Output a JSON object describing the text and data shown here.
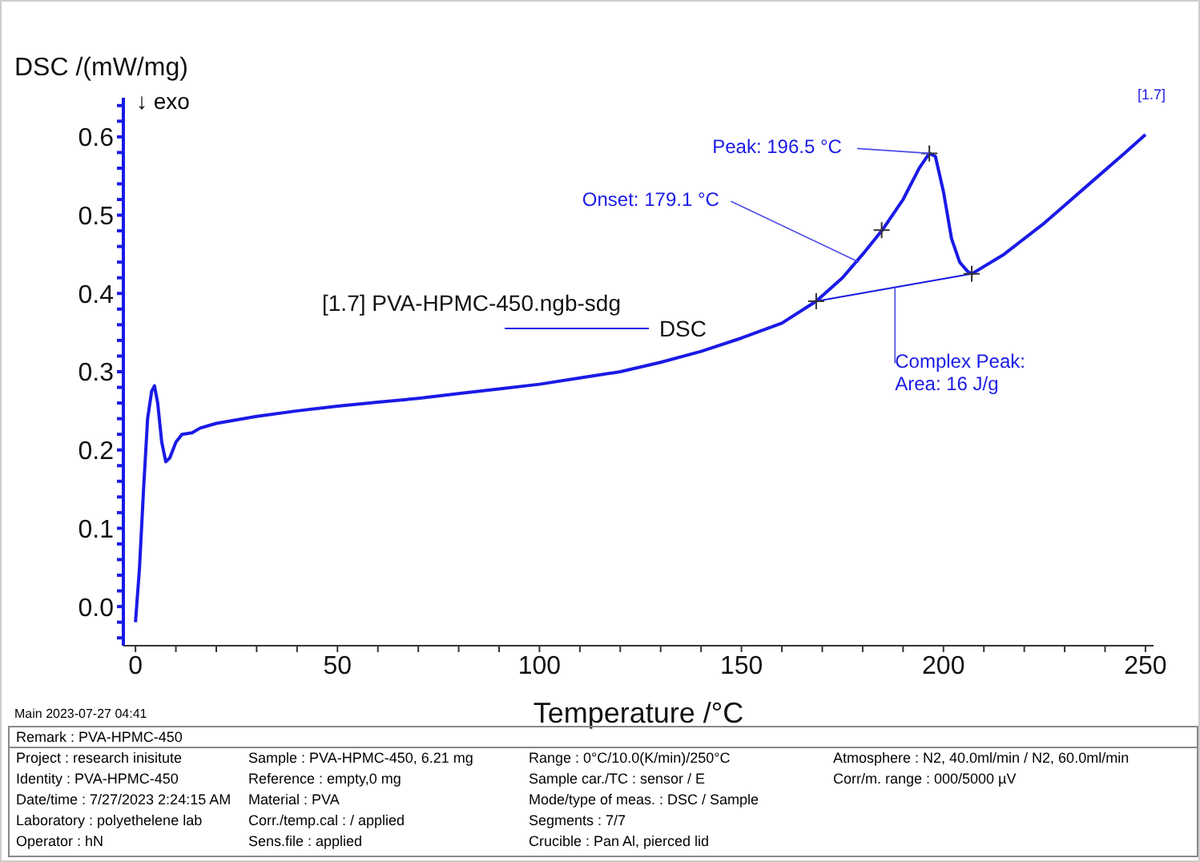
{
  "chart_data": {
    "type": "line",
    "ylabel": "DSC /(mW/mg)",
    "xlabel": "Temperature /°C",
    "legend_title": "[1.7]  PVA-HPMC-450.ngb-sdg",
    "legend": "left",
    "grid": false,
    "line_style": "solid",
    "marker": "none",
    "xlim": [
      -3,
      252
    ],
    "ylim": [
      -0.05,
      0.65
    ],
    "xticks": [
      0,
      {
        "value": 10,
        "label": null
      },
      {
        "value": 20,
        "label": null
      },
      {
        "value": 30,
        "label": null
      },
      {
        "value": 40,
        "label": null
      },
      50,
      {
        "value": 60,
        "label": null
      },
      {
        "value": 70,
        "label": null
      },
      {
        "value": 80,
        "label": null
      },
      {
        "value": 90,
        "label": null
      },
      100,
      {
        "value": 110,
        "label": null
      },
      {
        "value": 120,
        "label": null
      },
      {
        "value": 130,
        "label": null
      },
      {
        "value": 140,
        "label": null
      },
      150,
      {
        "value": 160,
        "label": null
      },
      {
        "value": 170,
        "label": null
      },
      {
        "value": 180,
        "label": null
      },
      {
        "value": 190,
        "label": null
      },
      200,
      {
        "value": 210,
        "label": null
      },
      {
        "value": 220,
        "label": null
      },
      {
        "value": 230,
        "label": null
      },
      {
        "value": 240,
        "label": null
      },
      250
    ],
    "yticks": [
      {
        "value": -0.04,
        "label": null
      },
      {
        "value": -0.02,
        "label": null
      },
      {
        "value": 0,
        "label": "0.0"
      },
      {
        "value": 0.02,
        "label": null
      },
      {
        "value": 0.04,
        "label": null
      },
      {
        "value": 0.06,
        "label": null
      },
      {
        "value": 0.08,
        "label": null
      },
      {
        "value": 0.1,
        "label": "0.1"
      },
      {
        "value": 0.12,
        "label": null
      },
      {
        "value": 0.14,
        "label": null
      },
      {
        "value": 0.16,
        "label": null
      },
      {
        "value": 0.18,
        "label": null
      },
      {
        "value": 0.2,
        "label": "0.2"
      },
      {
        "value": 0.22,
        "label": null
      },
      {
        "value": 0.24,
        "label": null
      },
      {
        "value": 0.26,
        "label": null
      },
      {
        "value": 0.28,
        "label": null
      },
      {
        "value": 0.3,
        "label": "0.3"
      },
      {
        "value": 0.32,
        "label": null
      },
      {
        "value": 0.34,
        "label": null
      },
      {
        "value": 0.36,
        "label": null
      },
      {
        "value": 0.38,
        "label": null
      },
      {
        "value": 0.4,
        "label": "0.4"
      },
      {
        "value": 0.42,
        "label": null
      },
      {
        "value": 0.44,
        "label": null
      },
      {
        "value": 0.46,
        "label": null
      },
      {
        "value": 0.48,
        "label": null
      },
      {
        "value": 0.5,
        "label": "0.5"
      },
      {
        "value": 0.52,
        "label": null
      },
      {
        "value": 0.54,
        "label": null
      },
      {
        "value": 0.56,
        "label": null
      },
      {
        "value": 0.58,
        "label": null
      },
      {
        "value": 0.6,
        "label": "0.6"
      },
      {
        "value": 0.62,
        "label": null
      },
      {
        "value": 0.64,
        "label": null
      }
    ],
    "series": [
      {
        "name": "DSC",
        "color": "#1a1ae6",
        "x": [
          0,
          1,
          2,
          3,
          4,
          4.7,
          5.5,
          6.5,
          7.5,
          8.5,
          10,
          11.5,
          14,
          16,
          20,
          30,
          40,
          50,
          60,
          70,
          80,
          90,
          100,
          110,
          120,
          130,
          140,
          150,
          160,
          168.5,
          175,
          180,
          185,
          190,
          194,
          196.5,
          198,
          200,
          202,
          204,
          206,
          207,
          215,
          225,
          235,
          245,
          250
        ],
        "values": [
          -0.02,
          0.05,
          0.15,
          0.24,
          0.275,
          0.282,
          0.26,
          0.21,
          0.185,
          0.19,
          0.21,
          0.22,
          0.222,
          0.228,
          0.234,
          0.243,
          0.25,
          0.256,
          0.261,
          0.266,
          0.272,
          0.278,
          0.284,
          0.292,
          0.3,
          0.312,
          0.326,
          0.343,
          0.362,
          0.39,
          0.42,
          0.45,
          0.482,
          0.52,
          0.56,
          0.579,
          0.575,
          0.53,
          0.47,
          0.44,
          0.428,
          0.425,
          0.45,
          0.49,
          0.535,
          0.58,
          0.603
        ]
      },
      {
        "color": "#1a1ae6",
        "x": [
          168.5,
          207
        ],
        "values": [
          0.39,
          0.425
        ]
      },
      {
        "color": "#333333",
        "type": "scatter",
        "marker": "cross",
        "x": [
          168.5,
          184.7,
          196.5,
          207
        ],
        "values": [
          0.39,
          0.481,
          0.579,
          0.425
        ]
      }
    ],
    "annotations": [
      {
        "text": "Peak: 196.5 °C",
        "x": 196.5,
        "y": 0.579
      },
      {
        "text": "Onset: 179.1 °C",
        "x": 179.1,
        "y": 0.44
      },
      {
        "text": "Complex Peak:\nArea:  16 J/g",
        "x": 188,
        "y": 0.407
      },
      {
        "text": "[1.7]",
        "x": 250,
        "y": 0.603
      },
      "↓ exo",
      "Main   2023-07-27 04:41",
      "Remark :  PVA-HPMC-450",
      "Project :  research inisitute",
      "Identity :  PVA-HPMC-450",
      "Date/time :  7/27/2023 2:24:15 AM",
      "Laboratory :  polyethelene lab",
      "Operator :  hN",
      "Sample :  PVA-HPMC-450, 6.21 mg",
      "Reference :  empty,0 mg",
      "Material :  PVA",
      "Corr./temp.cal :  / applied",
      "Sens.file :  applied",
      "Range :  0°C/10.0(K/min)/250°C",
      "Sample car./TC :  sensor / E",
      "Mode/type of meas. :  DSC / Sample",
      "Segments :  7/7",
      "Crucible :  Pan Al, pierced lid",
      "Atmosphere :  N2, 40.0ml/min / N2, 60.0ml/min",
      "Corr/m. range :  000/5000 µV"
    ]
  }
}
